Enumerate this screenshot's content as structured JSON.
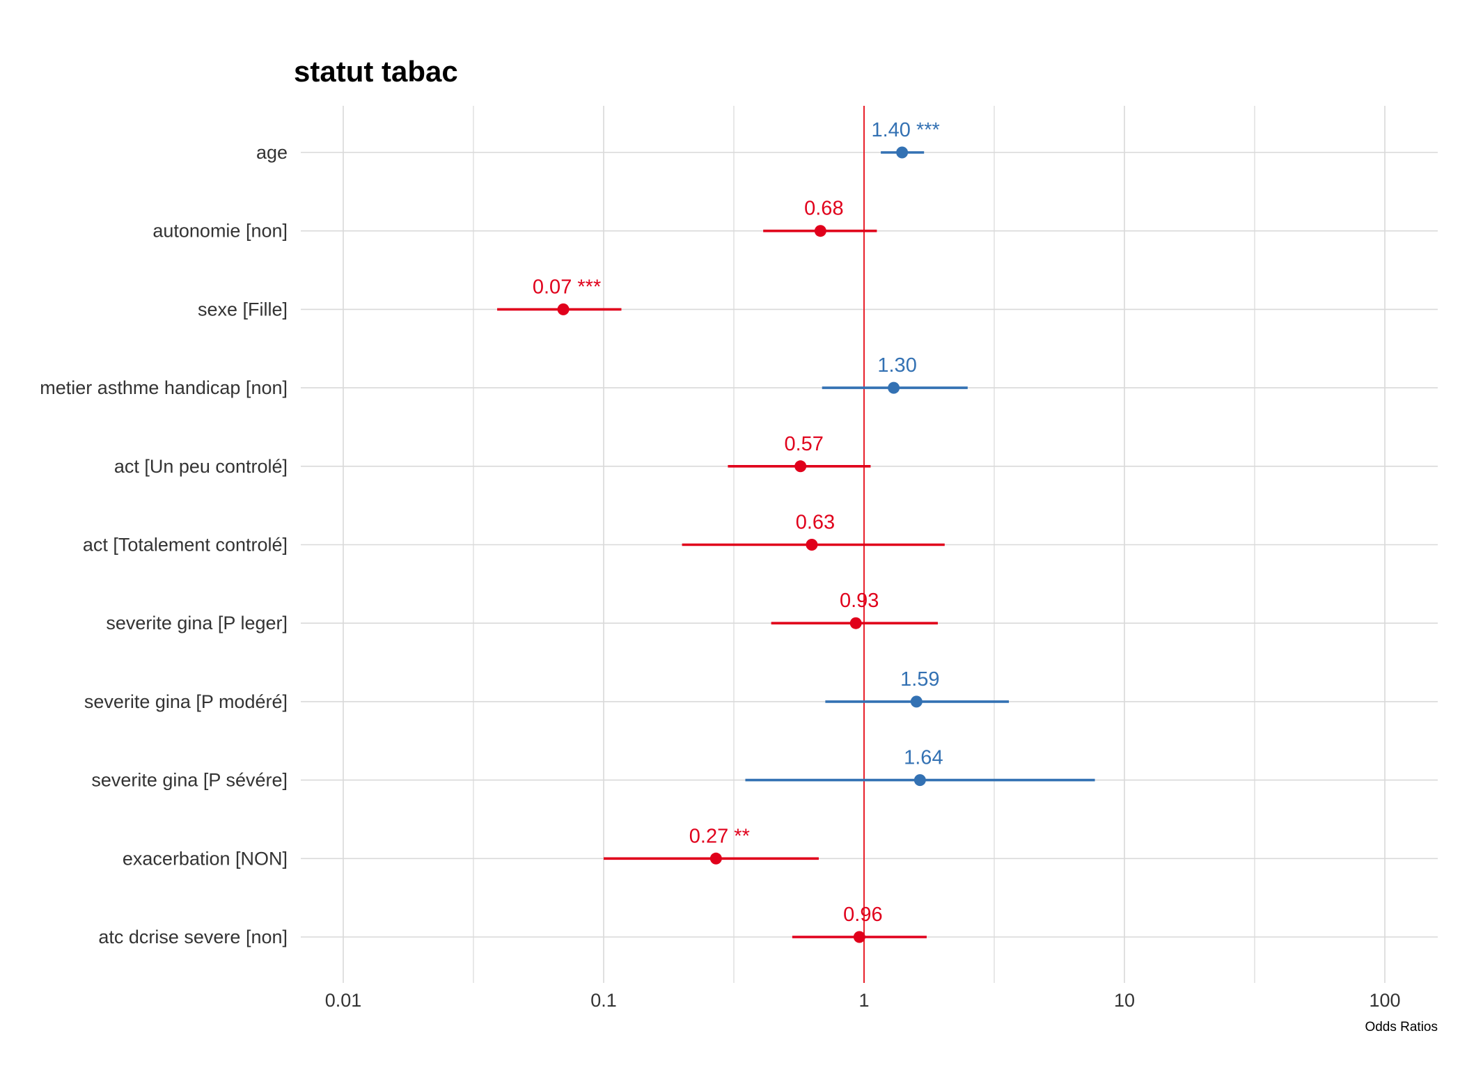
{
  "chart_data": {
    "type": "forest",
    "title": "statut tabac",
    "xlabel": "Odds Ratios",
    "xscale": "log10",
    "xlim": [
      0.0062,
      150
    ],
    "xticks": [
      0.01,
      0.1,
      1,
      10,
      100
    ],
    "xtick_labels": [
      "0.01",
      "0.1",
      "1",
      "10",
      "100"
    ],
    "reference_line": 1,
    "colors": {
      "positive": "#3371b3",
      "negative": "#e0001b",
      "reference": "#e8202a",
      "grid": "#d9d9d9"
    },
    "rows": [
      {
        "label": "age",
        "or": 1.4,
        "lo": 1.16,
        "hi": 1.7,
        "text": "1.40 ***",
        "direction": "positive"
      },
      {
        "label": "autonomie [non]",
        "or": 0.68,
        "lo": 0.41,
        "hi": 1.12,
        "text": "0.68",
        "direction": "negative"
      },
      {
        "label": "sexe [Fille]",
        "or": 0.07,
        "lo": 0.039,
        "hi": 0.117,
        "text": "0.07 ***",
        "direction": "negative"
      },
      {
        "label": "metier asthme handicap [non]",
        "or": 1.3,
        "lo": 0.69,
        "hi": 2.5,
        "text": "1.30",
        "direction": "positive"
      },
      {
        "label": "act [Un peu controlé]",
        "or": 0.57,
        "lo": 0.3,
        "hi": 1.06,
        "text": "0.57",
        "direction": "negative"
      },
      {
        "label": "act [Totalement controlé]",
        "or": 0.63,
        "lo": 0.2,
        "hi": 2.04,
        "text": "0.63",
        "direction": "negative"
      },
      {
        "label": "severite gina [P leger]",
        "or": 0.93,
        "lo": 0.44,
        "hi": 1.92,
        "text": "0.93",
        "direction": "negative"
      },
      {
        "label": "severite gina [P modéré]",
        "or": 1.59,
        "lo": 0.71,
        "hi": 3.6,
        "text": "1.59",
        "direction": "positive"
      },
      {
        "label": "severite gina [P sévére]",
        "or": 1.64,
        "lo": 0.35,
        "hi": 7.7,
        "text": "1.64",
        "direction": "positive"
      },
      {
        "label": "exacerbation [NON]",
        "or": 0.27,
        "lo": 0.1,
        "hi": 0.67,
        "text": "0.27 **",
        "direction": "negative"
      },
      {
        "label": "atc dcrise severe [non]",
        "or": 0.96,
        "lo": 0.53,
        "hi": 1.74,
        "text": "0.96",
        "direction": "negative"
      }
    ]
  }
}
